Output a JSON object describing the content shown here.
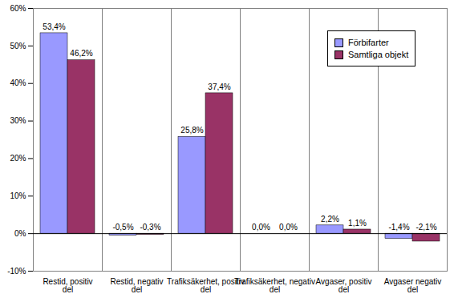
{
  "chart_data": {
    "type": "bar",
    "categories": [
      "Restid, positiv del",
      "Restid, negativ del",
      "Trafiksäkerhet, positiv del",
      "Trafiksäkerhet, negativ del",
      "Avgaser, positiv del",
      "Avgaser negativ del"
    ],
    "series": [
      {
        "name": "Förbifarter",
        "color": "#9999ff",
        "values": [
          53.4,
          -0.5,
          25.8,
          0.0,
          2.2,
          -1.4
        ],
        "value_labels": [
          "53,4%",
          "-0,5%",
          "25,8%",
          "0,0%",
          "2,2%",
          "-1,4%"
        ]
      },
      {
        "name": "Samtliga objekt",
        "color": "#993366",
        "values": [
          46.2,
          -0.3,
          37.4,
          0.0,
          1.1,
          -2.1
        ],
        "value_labels": [
          "46,2%",
          "-0,3%",
          "37,4%",
          "0,0%",
          "1,1%",
          "-2,1%"
        ]
      }
    ],
    "ylim": [
      -10,
      60
    ],
    "yticks": [
      {
        "value": -10,
        "label": "-10%"
      },
      {
        "value": 0,
        "label": "0%"
      },
      {
        "value": 10,
        "label": "10%"
      },
      {
        "value": 20,
        "label": "20%"
      },
      {
        "value": 30,
        "label": "30%"
      },
      {
        "value": 40,
        "label": "40%"
      },
      {
        "value": 50,
        "label": "50%"
      },
      {
        "value": 60,
        "label": "60%"
      }
    ],
    "grid": false,
    "legend": "top-right",
    "data_labels": true
  }
}
